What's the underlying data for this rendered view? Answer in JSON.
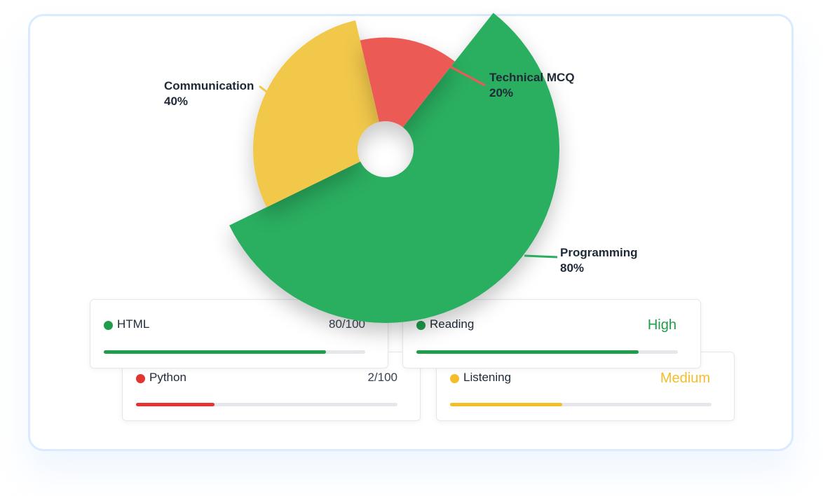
{
  "chart_data": {
    "type": "pie",
    "slices": [
      {
        "label": "Communication",
        "value": 40,
        "value_label": "40%",
        "color": "#f2c84b"
      },
      {
        "label": "Technical MCQ",
        "value": 20,
        "value_label": "20%",
        "color": "#ec5a57"
      },
      {
        "label": "Programming",
        "value": 80,
        "value_label": "80%",
        "color": "#29ae60"
      }
    ]
  },
  "cards": [
    {
      "name": "Python",
      "score": "2/100",
      "progress": 0.3,
      "color": "#e3342f"
    },
    {
      "name": "Listening",
      "level": "Medium",
      "progress": 0.43,
      "color": "#f6bd2b",
      "level_color": "#f6bd2b"
    },
    {
      "name": "HTML",
      "score": "80/100",
      "progress": 0.85,
      "color": "#1f9d4a"
    },
    {
      "name": "Reading",
      "level": "High",
      "progress": 0.85,
      "color": "#1f9d4a",
      "level_color": "#1f9d4a"
    }
  ]
}
